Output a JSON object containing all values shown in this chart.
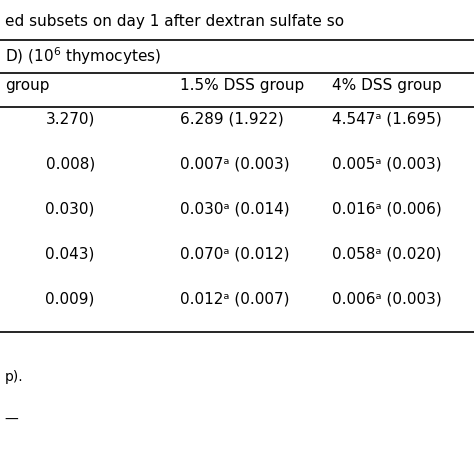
{
  "title_line": "ed subsets on day 1 after dextran sulfate so",
  "subtitle_line": "D) (10⁶ thymocytes)",
  "col_headers": [
    "group",
    "1.5% DSS group",
    "4% DSS group"
  ],
  "rows": [
    [
      "3.270)",
      "6.289 (1.922)",
      "4.547ᵃ (1.695)"
    ],
    [
      "0.008)",
      "0.007ᵃ (0.003)",
      "0.005ᵃ (0.003)"
    ],
    [
      "0.030)",
      "0.030ᵃ (0.014)",
      "0.016ᵃ (0.006)"
    ],
    [
      "0.043)",
      "0.070ᵃ (0.012)",
      "0.058ᵃ (0.020)"
    ],
    [
      "0.009)",
      "0.012ᵃ (0.007)",
      "0.006ᵃ (0.003)"
    ]
  ],
  "footer_lines": [
    "p)."
  ],
  "bg_color": "#ffffff",
  "text_color": "#000000",
  "font_size": 11,
  "header_font_size": 11
}
